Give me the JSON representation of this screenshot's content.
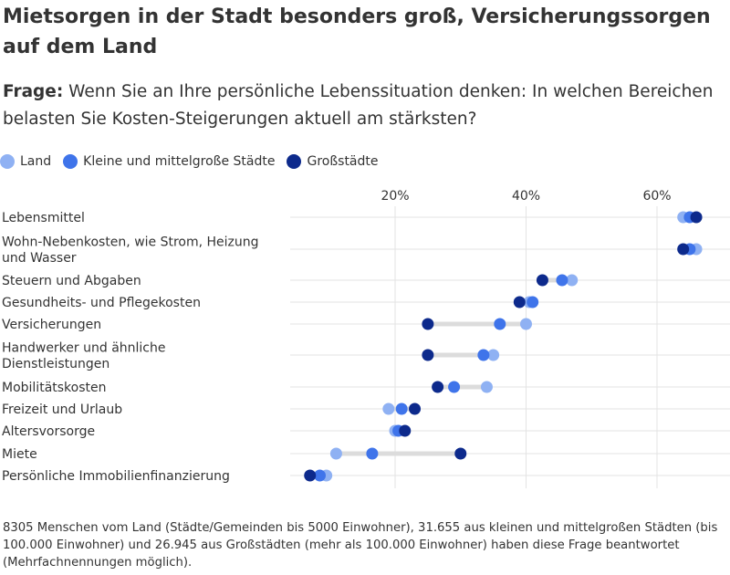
{
  "title": "Mietsorgen in der Stadt besonders groß, Versicherungssorgen auf dem Land",
  "subtitle_prefix": "Frage:",
  "subtitle_text": " Wenn Sie an Ihre persönliche Lebenssituation denken: In welchen Bereichen belasten Sie Kosten-Steigerungen aktuell am stärksten?",
  "footnote": "8305 Menschen vom Land (Städte/Gemeinden bis 5000 Einwohner), 31.655 aus kleinen und mittelgroßen Städten (bis 100.000 Einwohner) und 26.945 aus Großstädten (mehr als 100.000 Einwohner) haben diese Frage beantwortet (Mehrfachnennungen möglich).",
  "colors": {
    "Land": "#8fb1f3",
    "Kleine und mittelgroße Städte": "#3f74ea",
    "Großstädte": "#0d2a8c",
    "connector": "#dcdcdc",
    "grid": "#e3e3e3"
  },
  "chart_data": {
    "type": "scatter",
    "subtype": "dot-plot",
    "legend_position": "top-left",
    "grid": true,
    "xlim": [
      0,
      70
    ],
    "x_ticks": [
      "20%",
      "40%",
      "60%"
    ],
    "x_tick_values": [
      20,
      40,
      60
    ],
    "categories": [
      [
        "Lebensmittel"
      ],
      [
        "Wohn-Nebenkosten, wie Strom, Heizung",
        "und Wasser"
      ],
      [
        "Steuern und Abgaben"
      ],
      [
        "Gesundheits- und Pflegekosten"
      ],
      [
        "Versicherungen"
      ],
      [
        "Handwerker und ähnliche",
        "Dienstleistungen"
      ],
      [
        "Mobilitätskosten"
      ],
      [
        "Freizeit und Urlaub"
      ],
      [
        "Altersvorsorge"
      ],
      [
        "Miete"
      ],
      [
        "Persönliche Immobilienfinanzierung"
      ]
    ],
    "series": [
      {
        "name": "Land",
        "values": [
          64,
          66,
          47,
          40.5,
          40,
          35,
          34,
          19,
          20,
          11,
          9.5
        ]
      },
      {
        "name": "Kleine und mittelgroße Städte",
        "values": [
          65,
          65,
          45.5,
          41,
          36,
          33.5,
          29,
          21,
          20.5,
          16.5,
          8.5
        ]
      },
      {
        "name": "Großstädte",
        "values": [
          66,
          64,
          42.5,
          39,
          25,
          25,
          26.5,
          23,
          21.5,
          30,
          7
        ]
      }
    ]
  }
}
